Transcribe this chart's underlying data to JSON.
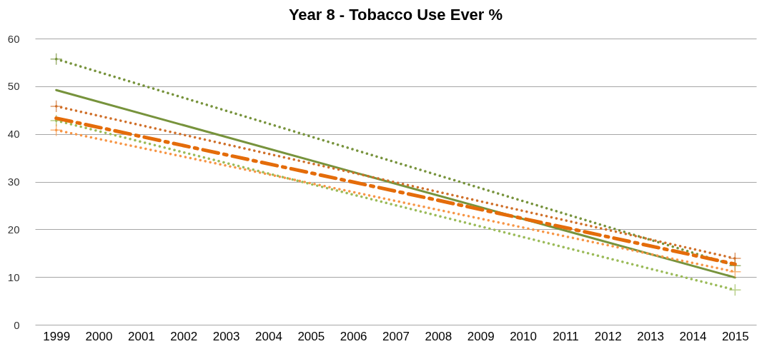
{
  "chart_data": {
    "type": "line",
    "title": "Year 8 - Tobacco Use Ever %",
    "xlim": [
      1998.5,
      2015.5
    ],
    "xticks": [
      1999,
      2000,
      2001,
      2002,
      2003,
      2004,
      2005,
      2006,
      2007,
      2008,
      2009,
      2010,
      2011,
      2012,
      2013,
      2014,
      2015
    ],
    "ylim": [
      0,
      60
    ],
    "yticks": [
      0,
      10,
      20,
      30,
      40,
      50,
      60
    ],
    "grid": "y",
    "x": [
      1999,
      2015
    ],
    "series": [
      {
        "color": "#77933c",
        "values": [
          49.2,
          9.9
        ],
        "line_style": "solid",
        "marker": "none"
      },
      {
        "color": "#77933c",
        "values": [
          55.7,
          12.4
        ],
        "line_style": "dotted",
        "marker": "cross"
      },
      {
        "color": "#9bbb59",
        "values": [
          42.8,
          7.3
        ],
        "line_style": "dotted",
        "marker": "cross"
      },
      {
        "color": "#e46c0a",
        "values": [
          43.3,
          12.7
        ],
        "line_style": "dashed",
        "marker": "none"
      },
      {
        "color": "#d0702a",
        "values": [
          45.8,
          13.9
        ],
        "line_style": "dotted",
        "marker": "cross"
      },
      {
        "color": "#f79646",
        "values": [
          40.8,
          11.1
        ],
        "line_style": "dotted",
        "marker": "cross"
      }
    ]
  }
}
